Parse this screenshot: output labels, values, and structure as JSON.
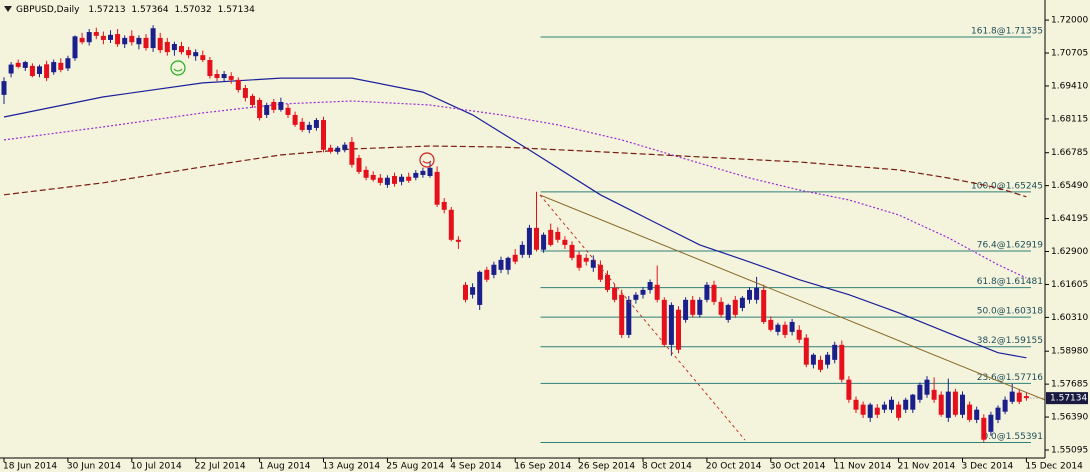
{
  "chart_data": {
    "type": "candlestick",
    "symbol": "GBPUSD,Daily",
    "ylim": [
      1.5478,
      1.7279
    ],
    "yticks": [
      {
        "value": 1.72,
        "label": "1.72000"
      },
      1.70705,
      {
        "value": 1.6941,
        "label": "1.69410"
      },
      1.68115,
      1.66785,
      {
        "value": 1.6549,
        "label": "1.65490"
      },
      1.64195,
      {
        "value": 1.629,
        "label": "1.62900"
      },
      1.61605,
      {
        "value": 1.6031,
        "label": "1.60310"
      },
      {
        "value": 1.5898,
        "label": "1.58980"
      },
      1.57685,
      {
        "value": 1.5639,
        "label": "1.56390"
      },
      1.55095
    ],
    "up_color": "#1a1f8c",
    "down_color": "#e5101c",
    "categories": [
      "18 Jun 2014",
      null,
      null,
      null,
      null,
      null,
      null,
      null,
      null,
      "30 Jun 2014",
      null,
      null,
      null,
      null,
      null,
      null,
      null,
      null,
      "10 Jul 2014",
      null,
      null,
      null,
      null,
      null,
      null,
      null,
      null,
      "22 Jul 2014",
      null,
      null,
      null,
      null,
      null,
      null,
      null,
      null,
      "1 Aug 2014",
      null,
      null,
      null,
      null,
      null,
      null,
      null,
      null,
      "13 Aug 2014",
      null,
      null,
      null,
      null,
      null,
      null,
      null,
      null,
      "25 Aug 2014",
      null,
      null,
      null,
      null,
      null,
      null,
      null,
      null,
      "4 Sep 2014",
      null,
      null,
      null,
      null,
      null,
      null,
      null,
      null,
      "16 Sep 2014",
      null,
      null,
      null,
      null,
      null,
      null,
      null,
      null,
      "26 Sep 2014",
      null,
      null,
      null,
      null,
      null,
      null,
      null,
      null,
      "8 Oct 2014",
      null,
      null,
      null,
      null,
      null,
      null,
      null,
      null,
      "20 Oct 2014",
      null,
      null,
      null,
      null,
      null,
      null,
      null,
      null,
      "30 Oct 2014",
      null,
      null,
      null,
      null,
      null,
      null,
      null,
      null,
      "11 Nov 2014",
      null,
      null,
      null,
      null,
      null,
      null,
      null,
      null,
      "21 Nov 2014",
      null,
      null,
      null,
      null,
      null,
      null,
      null,
      null,
      "3 Dec 2014",
      null,
      null,
      null,
      null,
      null,
      null,
      null,
      null,
      "15 Dec 2014"
    ],
    "ohlc": {
      "open": [
        1.6906,
        1.699,
        1.7032,
        1.7012,
        1.702,
        1.6988,
        1.7026,
        1.6995,
        1.7032,
        1.701,
        1.705,
        1.713,
        1.7113,
        1.7153,
        1.7138,
        1.7122,
        1.7145,
        1.7105,
        1.7138,
        1.7105,
        1.713,
        1.709,
        1.713,
        1.7114,
        1.7082,
        1.7098,
        1.7082,
        1.7058,
        1.7062,
        1.7043,
        1.6988,
        1.6972,
        1.698,
        1.6965,
        1.6933,
        1.6902,
        1.6886,
        1.6827,
        1.6878,
        1.6847,
        1.6855,
        1.6827,
        1.68,
        1.6768,
        1.6776,
        1.6807,
        1.6698,
        1.6682,
        1.669,
        1.6721,
        1.6658,
        1.6611,
        1.6591,
        1.658,
        1.6552,
        1.6587,
        1.6564,
        1.6584,
        1.658,
        1.6591,
        1.6587,
        1.6603,
        1.6485,
        1.6454,
        1.6336,
        1.6159,
        1.612,
        1.608,
        1.6218,
        1.6198,
        1.6218,
        1.6218,
        1.6277,
        1.6277,
        1.6277,
        1.6383,
        1.6297,
        1.6375,
        1.6367,
        1.6336,
        1.6316,
        1.6277,
        1.6265,
        1.6226,
        1.6238,
        1.6198,
        1.6147,
        1.612,
        1.5962,
        1.61,
        1.612,
        1.6139,
        1.6159,
        1.61,
        1.5923,
        1.6061,
        1.6021,
        1.61,
        1.6041,
        1.61,
        1.6159,
        1.6092,
        1.6021,
        1.61,
        1.6068,
        1.61,
        1.61,
        1.6139,
        1.6021,
        1.5974,
        1.6002,
        1.5974,
        1.5982,
        1.5951,
        1.5845,
        1.5864,
        1.5845,
        1.5864,
        1.5923,
        1.5786,
        1.5707,
        1.5688,
        1.5636,
        1.5676,
        1.5668,
        1.5668,
        1.5688,
        1.5668,
        1.5668,
        1.5707,
        1.5727,
        1.5746,
        1.5727,
        1.5636,
        1.5739,
        1.5648,
        1.5688,
        1.5628,
        1.5636,
        1.5581,
        1.5628,
        1.566,
        1.5699,
        1.5735,
        1.57213
      ],
      "high": [
        1.6975,
        1.7035,
        1.7045,
        1.704,
        1.703,
        1.7025,
        1.704,
        1.7045,
        1.705,
        1.706,
        1.714,
        1.715,
        1.7165,
        1.717,
        1.7155,
        1.716,
        1.7165,
        1.714,
        1.716,
        1.714,
        1.7145,
        1.718,
        1.715,
        1.713,
        1.7115,
        1.7115,
        1.7095,
        1.7085,
        1.708,
        1.7055,
        1.7005,
        1.7,
        1.6995,
        1.6975,
        1.6945,
        1.691,
        1.6895,
        1.6875,
        1.689,
        1.6895,
        1.687,
        1.684,
        1.6815,
        1.68,
        1.6815,
        1.682,
        1.671,
        1.6705,
        1.672,
        1.674,
        1.667,
        1.6625,
        1.6605,
        1.6595,
        1.659,
        1.66,
        1.6595,
        1.66,
        1.661,
        1.662,
        1.664,
        1.6625,
        1.65,
        1.6465,
        1.635,
        1.617,
        1.6165,
        1.6215,
        1.623,
        1.625,
        1.627,
        1.627,
        1.63,
        1.633,
        1.6395,
        1.6525,
        1.6365,
        1.64,
        1.6385,
        1.635,
        1.633,
        1.629,
        1.628,
        1.6275,
        1.6255,
        1.6215,
        1.616,
        1.614,
        1.6115,
        1.613,
        1.615,
        1.618,
        1.6235,
        1.611,
        1.609,
        1.6075,
        1.611,
        1.6115,
        1.611,
        1.617,
        1.6175,
        1.611,
        1.6085,
        1.6115,
        1.6115,
        1.615,
        1.619,
        1.616,
        1.6035,
        1.601,
        1.6015,
        1.6025,
        1.6,
        1.5965,
        1.589,
        1.588,
        1.5895,
        1.5935,
        1.594,
        1.58,
        1.572,
        1.57,
        1.5695,
        1.569,
        1.57,
        1.572,
        1.57,
        1.5715,
        1.573,
        1.5775,
        1.58,
        1.5795,
        1.574,
        1.579,
        1.575,
        1.574,
        1.57,
        1.568,
        1.565,
        1.566,
        1.5685,
        1.572,
        1.577,
        1.575,
        1.57364
      ],
      "low": [
        1.687,
        1.6975,
        1.701,
        1.7,
        1.6975,
        1.6975,
        1.696,
        1.6985,
        1.6995,
        1.7,
        1.704,
        1.7105,
        1.71,
        1.7125,
        1.7105,
        1.711,
        1.7095,
        1.709,
        1.71,
        1.7085,
        1.708,
        1.7075,
        1.707,
        1.706,
        1.706,
        1.7065,
        1.705,
        1.704,
        1.7035,
        1.697,
        1.696,
        1.696,
        1.695,
        1.6915,
        1.688,
        1.6855,
        1.6805,
        1.6815,
        1.6835,
        1.684,
        1.6815,
        1.678,
        1.676,
        1.6755,
        1.6765,
        1.668,
        1.6675,
        1.6672,
        1.668,
        1.662,
        1.6595,
        1.657,
        1.6565,
        1.655,
        1.654,
        1.6545,
        1.655,
        1.656,
        1.657,
        1.658,
        1.658,
        1.6465,
        1.644,
        1.633,
        1.63,
        1.609,
        1.6105,
        1.606,
        1.617,
        1.6185,
        1.6205,
        1.62,
        1.624,
        1.6265,
        1.6265,
        1.629,
        1.6285,
        1.631,
        1.6325,
        1.63,
        1.6255,
        1.6215,
        1.6235,
        1.621,
        1.617,
        1.613,
        1.609,
        1.595,
        1.595,
        1.6085,
        1.6105,
        1.6125,
        1.609,
        1.5915,
        1.588,
        1.589,
        1.601,
        1.603,
        1.603,
        1.609,
        1.608,
        1.603,
        1.601,
        1.603,
        1.6055,
        1.6085,
        1.6085,
        1.6005,
        1.5975,
        1.596,
        1.595,
        1.596,
        1.593,
        1.5835,
        1.583,
        1.5815,
        1.583,
        1.585,
        1.5775,
        1.5695,
        1.5655,
        1.5635,
        1.562,
        1.5635,
        1.5655,
        1.5655,
        1.5625,
        1.5655,
        1.5655,
        1.5695,
        1.5715,
        1.5695,
        1.564,
        1.562,
        1.564,
        1.5635,
        1.562,
        1.5615,
        1.5539,
        1.5565,
        1.5615,
        1.565,
        1.569,
        1.569,
        1.57032
      ],
      "close": [
        1.696,
        1.7025,
        1.7016,
        1.7035,
        1.698,
        1.7018,
        1.6972,
        1.7035,
        1.7004,
        1.705,
        1.7136,
        1.7113,
        1.7153,
        1.7138,
        1.7122,
        1.7142,
        1.7105,
        1.713,
        1.7113,
        1.713,
        1.709,
        1.7168,
        1.7082,
        1.7074,
        1.7106,
        1.7074,
        1.7062,
        1.7074,
        1.7043,
        1.698,
        1.6972,
        1.6988,
        1.6965,
        1.6925,
        1.6894,
        1.6866,
        1.6815,
        1.6866,
        1.6847,
        1.6878,
        1.6827,
        1.6788,
        1.6768,
        1.6788,
        1.6807,
        1.669,
        1.6682,
        1.6698,
        1.671,
        1.6631,
        1.6603,
        1.658,
        1.6572,
        1.656,
        1.658,
        1.6556,
        1.6584,
        1.6568,
        1.6599,
        1.6607,
        1.6619,
        1.6474,
        1.6454,
        1.6336,
        1.6328,
        1.61,
        1.615,
        1.621,
        1.6179,
        1.6238,
        1.6257,
        1.6265,
        1.625,
        1.6316,
        1.6383,
        1.6297,
        1.6356,
        1.6316,
        1.6336,
        1.6316,
        1.6265,
        1.6226,
        1.625,
        1.6257,
        1.6179,
        1.6139,
        1.61,
        1.5962,
        1.61,
        1.612,
        1.6139,
        1.617,
        1.61,
        1.5923,
        1.608,
        1.5904,
        1.61,
        1.6041,
        1.61,
        1.6159,
        1.6092,
        1.6041,
        1.608,
        1.6041,
        1.6108,
        1.6139,
        1.6147,
        1.6013,
        1.5982,
        1.6002,
        1.5962,
        1.6013,
        1.5943,
        1.5845,
        1.5884,
        1.5825,
        1.5884,
        1.5923,
        1.5786,
        1.5707,
        1.5668,
        1.5648,
        1.5688,
        1.5648,
        1.5688,
        1.5707,
        1.5636,
        1.5707,
        1.5727,
        1.5766,
        1.5786,
        1.5707,
        1.5648,
        1.5739,
        1.5648,
        1.5727,
        1.5628,
        1.5668,
        1.555,
        1.5648,
        1.5676,
        1.5707,
        1.5739,
        1.5699,
        1.57134
      ]
    },
    "overlays": [
      {
        "color": "#1b1f9a",
        "dash": "solid",
        "x": [
          0,
          14,
          28,
          39,
          49,
          59,
          66,
          74,
          84,
          91,
          98,
          105,
          112,
          119,
          126,
          133,
          140,
          144
        ],
        "values": [
          1.6819,
          1.6898,
          1.6953,
          1.6972,
          1.6972,
          1.6917,
          1.6827,
          1.6689,
          1.6513,
          1.6414,
          1.6316,
          1.6249,
          1.6179,
          1.612,
          1.6049,
          1.597,
          1.5892,
          1.5872
        ]
      },
      {
        "color": "#9a2bd8",
        "dash": "dotted",
        "x": [
          0,
          14,
          28,
          39,
          49,
          60,
          70,
          78,
          87,
          95,
          105,
          112,
          119,
          126,
          133,
          140,
          144
        ],
        "values": [
          1.6729,
          1.678,
          1.6835,
          1.687,
          1.6882,
          1.6866,
          1.6827,
          1.6788,
          1.6729,
          1.6662,
          1.6579,
          1.6532,
          1.6493,
          1.6434,
          1.6344,
          1.6238,
          1.6186
        ]
      },
      {
        "color": "#7a1c12",
        "dash": "dashed",
        "x": [
          0,
          14,
          28,
          39,
          49,
          60,
          70,
          84,
          98,
          112,
          126,
          133,
          140,
          144
        ],
        "values": [
          1.6513,
          1.656,
          1.6623,
          1.667,
          1.6693,
          1.6705,
          1.6701,
          1.6682,
          1.6662,
          1.6642,
          1.6611,
          1.6579,
          1.654,
          1.6505
        ]
      }
    ],
    "fib_anchor": 75,
    "fib_color": "#2f7f7a",
    "fib_levels": [
      {
        "label": "161.8@1.71335",
        "value": 1.71335
      },
      {
        "label": "100.0@1.65245",
        "value": 1.65245
      },
      {
        "label": "76.4@1.62919",
        "value": 1.62919
      },
      {
        "label": "61.8@1.61481",
        "value": 1.61481
      },
      {
        "label": "50.0@1.60318",
        "value": 1.60318
      },
      {
        "label": "38.2@1.59155",
        "value": 1.59155
      },
      {
        "label": "23.6@1.57716",
        "value": 1.57716
      },
      {
        "label": "0.0@1.55391",
        "value": 1.55391
      }
    ]
  }
}
